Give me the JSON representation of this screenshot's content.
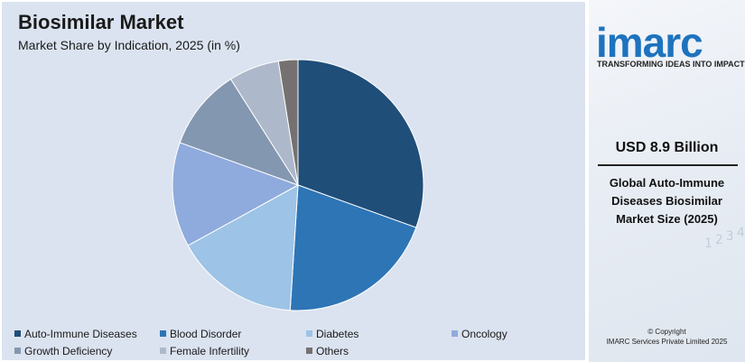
{
  "chart_data": {
    "type": "pie",
    "title": "Biosimilar Market",
    "subtitle": "Market Share by Indication, 2025 (in %)",
    "legend_placement": "bottom",
    "slices": [
      {
        "label": "Auto-Immune Diseases",
        "value": 30.5,
        "color": "#1f4e79"
      },
      {
        "label": "Blood Disorder",
        "value": 20.5,
        "color": "#2e75b6"
      },
      {
        "label": "Diabetes",
        "value": 16.0,
        "color": "#9dc3e6"
      },
      {
        "label": "Oncology",
        "value": 13.5,
        "color": "#8faadc"
      },
      {
        "label": "Growth Deficiency",
        "value": 10.5,
        "color": "#8497b0"
      },
      {
        "label": "Female Infertility",
        "value": 6.5,
        "color": "#adb9ca"
      },
      {
        "label": "Others",
        "value": 2.5,
        "color": "#747170"
      }
    ]
  },
  "brand": {
    "logo_text": "imarc",
    "tagline": "TRANSFORMING IDEAS INTO IMPACT",
    "color": "#1e73be"
  },
  "highlight": {
    "value": "USD 8.9 Billion",
    "description": "Global Auto-Immune Diseases Biosimilar Market Size (2025)"
  },
  "footer": {
    "copyright_line1": "© Copyright",
    "copyright_line2": "IMARC Services Private Limited 2025"
  }
}
